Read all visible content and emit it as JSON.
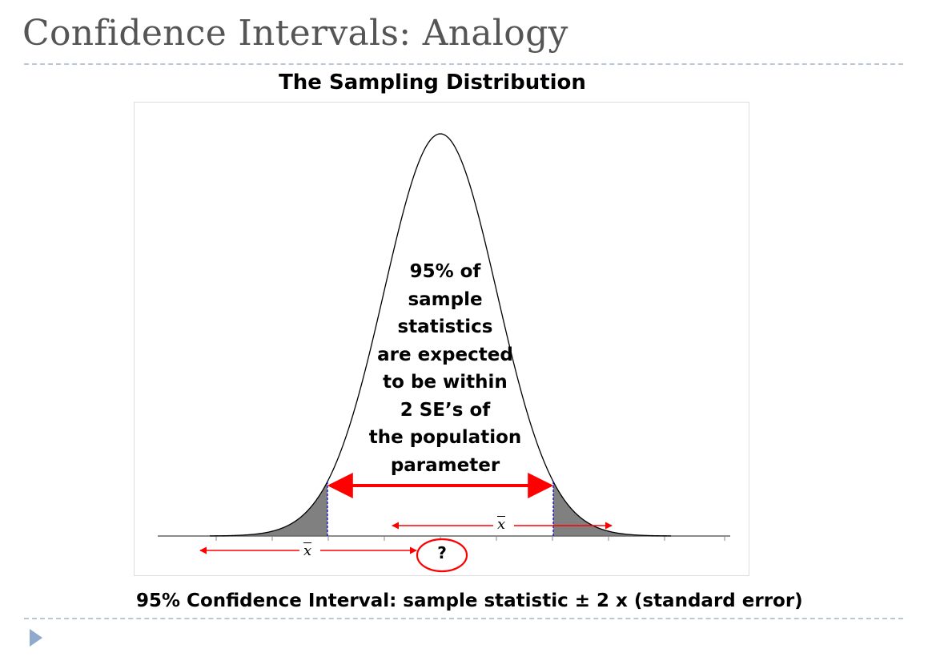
{
  "slide": {
    "title": "Confidence Intervals: Analogy",
    "subtitle": "The Sampling Distribution",
    "formula": "95% Confidence Interval: sample statistic ± 2 x (standard error)"
  },
  "diagram": {
    "center_text_lines": [
      "95% of",
      "sample",
      "statistics",
      "are expected",
      "to be within",
      "2 SE’s of",
      "the population",
      "parameter"
    ],
    "sample_mean_symbol": "x",
    "unknown_parameter": "?"
  },
  "colors": {
    "title_text": "#555555",
    "rule": "#b9c7d6",
    "arrow": "#ff0000",
    "tail_fill": "#808080",
    "tail_boundary": "#0000cc",
    "bullet": "#8faacc"
  }
}
